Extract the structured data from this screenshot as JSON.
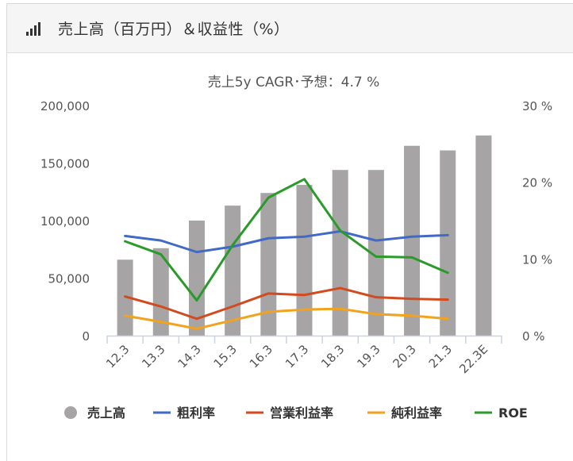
{
  "header": {
    "title": "売上高（百万円）＆収益性（%）",
    "icon": "bar-chart-icon"
  },
  "chart_data": {
    "type": "bar",
    "title": "売上5y CAGR･予想：4.7 %",
    "categories": [
      "12.3",
      "13.3",
      "14.3",
      "15.3",
      "16.3",
      "17.3",
      "18.3",
      "19.3",
      "20.3",
      "21.3",
      "22.3E"
    ],
    "left_axis": {
      "ylim": [
        0,
        200000
      ],
      "ticks": [
        "0",
        "50,000",
        "100,000",
        "150,000",
        "200,000"
      ]
    },
    "right_axis": {
      "ylim": [
        0,
        30
      ],
      "ticks": [
        "0 %",
        "10 %",
        "20 %",
        "30 %"
      ]
    },
    "grid": false,
    "legend_position": "bottom",
    "series": [
      {
        "name": "売上高",
        "type": "bar",
        "axis": "left",
        "color": "#a6a4a4",
        "values": [
          66000,
          76000,
          100000,
          113000,
          124000,
          131000,
          144000,
          144000,
          165000,
          161000,
          174000
        ]
      },
      {
        "name": "粗利率",
        "type": "line",
        "axis": "right",
        "color": "#4169c7",
        "values": [
          13.0,
          12.4,
          10.9,
          11.6,
          12.7,
          12.9,
          13.6,
          12.4,
          12.9,
          13.1,
          null
        ]
      },
      {
        "name": "営業利益率",
        "type": "line",
        "axis": "right",
        "color": "#d24a1e",
        "values": [
          5.1,
          3.8,
          2.2,
          3.8,
          5.5,
          5.3,
          6.2,
          5.0,
          4.8,
          4.7,
          null
        ]
      },
      {
        "name": "純利益率",
        "type": "line",
        "axis": "right",
        "color": "#f2a21c",
        "values": [
          2.6,
          1.8,
          0.9,
          2.0,
          3.1,
          3.4,
          3.5,
          2.8,
          2.6,
          2.2,
          null
        ]
      },
      {
        "name": "ROE",
        "type": "line",
        "axis": "right",
        "color": "#2a9a2a",
        "values": [
          12.3,
          10.6,
          4.6,
          11.8,
          18.0,
          20.4,
          13.7,
          10.3,
          10.2,
          8.2,
          null
        ]
      }
    ]
  }
}
